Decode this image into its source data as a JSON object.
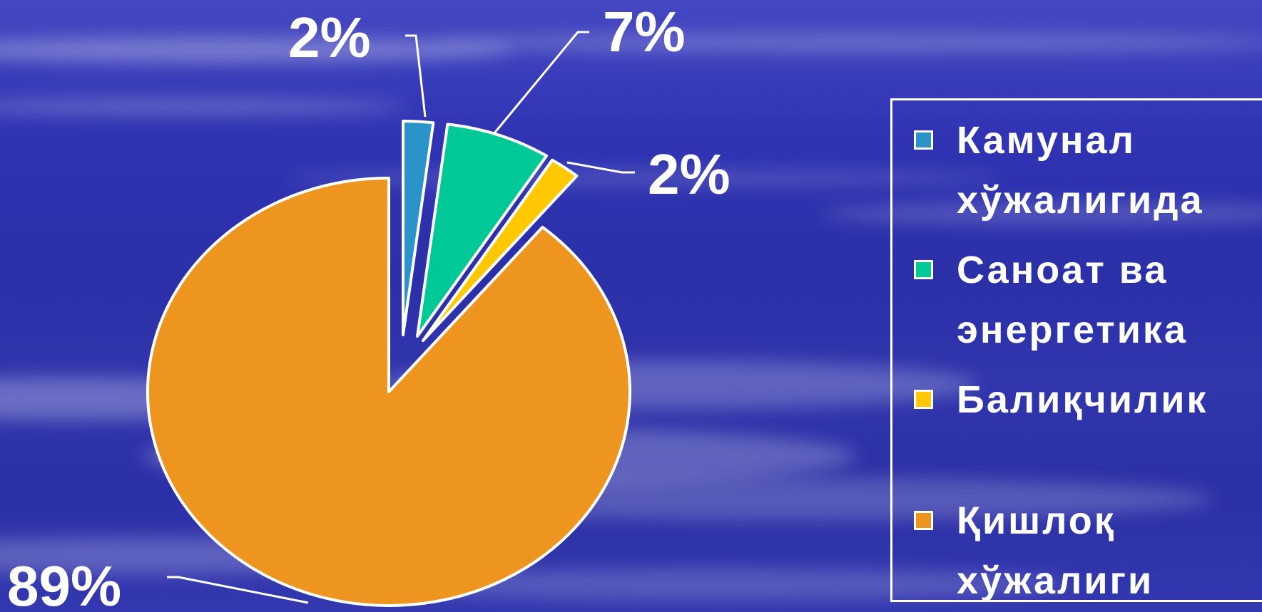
{
  "chart_data": {
    "type": "pie",
    "title": "",
    "categories": [
      "Камунал хўжалигида",
      "Саноат ва энергетика",
      "Балиқчилик",
      "Қишлоқ хўжалиги"
    ],
    "values": [
      2,
      7,
      2,
      89
    ],
    "data_labels": [
      "2%",
      "7%",
      "2%",
      "89%"
    ],
    "colors": [
      "#2a93c9",
      "#00c896",
      "#ffc800",
      "#ee9520"
    ],
    "exploded": true,
    "start_angle_deg": 0,
    "direction": "clockwise",
    "legend_placement": "right",
    "grid": false
  },
  "legend": {
    "items": [
      {
        "label": "Камунал хўжалигида",
        "color": "#2a93c9"
      },
      {
        "label": "Саноат ва энергетика",
        "color": "#00c896"
      },
      {
        "label": "Балиқчилик",
        "color": "#ffc800"
      },
      {
        "label": "Қишлоқ хўжалиги",
        "color": "#ee9520"
      }
    ]
  }
}
